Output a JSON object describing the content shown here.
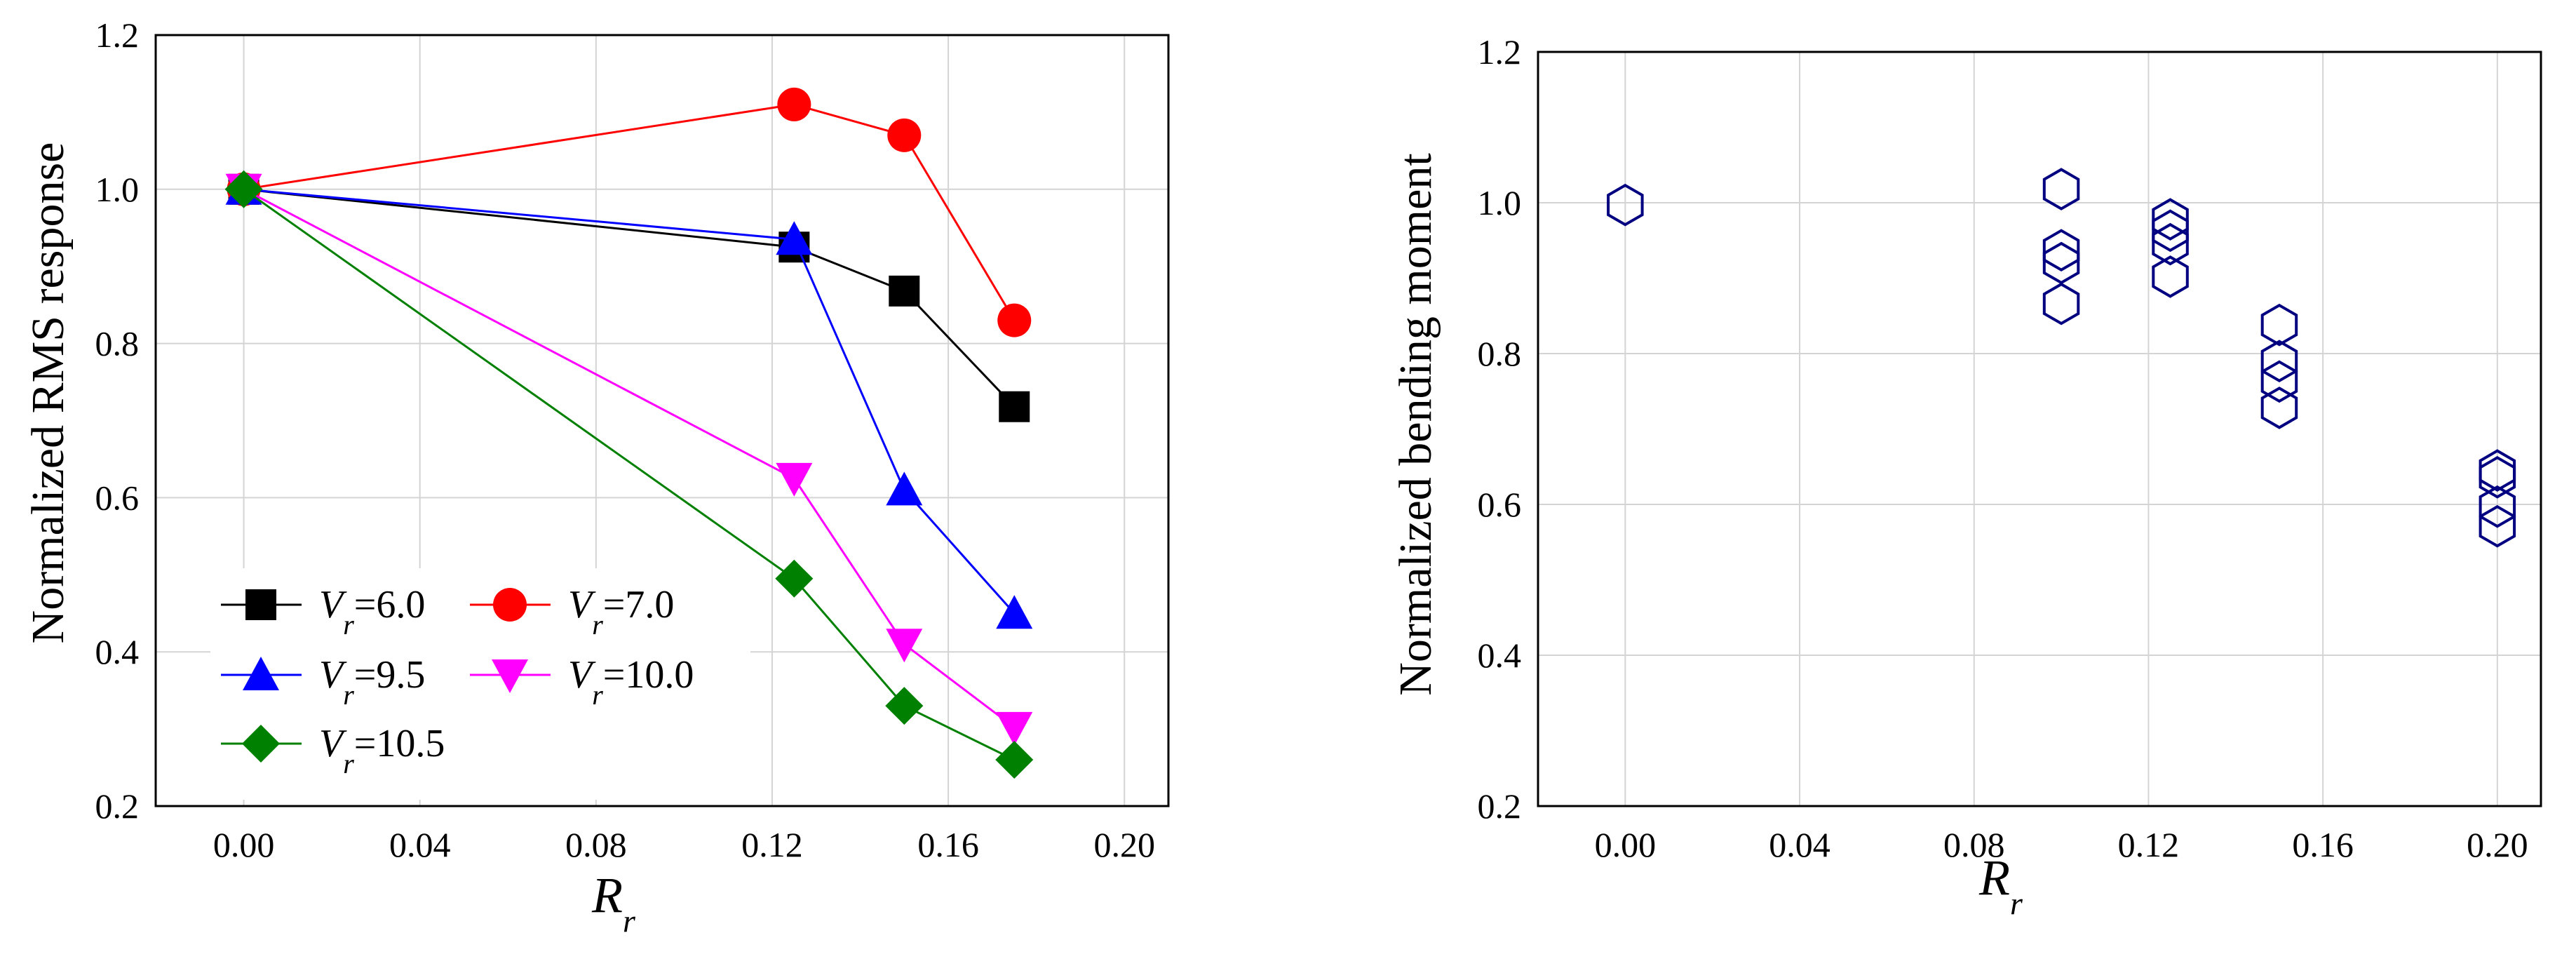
{
  "chart_data": [
    {
      "type": "line",
      "ylabel": "Normalized RMS response",
      "xlabel": "R",
      "xlabel_subscript": "r",
      "xlim": [
        -0.02,
        0.21
      ],
      "ylim": [
        0.2,
        1.2
      ],
      "xticks": [
        0.0,
        0.04,
        0.08,
        0.12,
        0.16,
        0.2
      ],
      "xtick_labels": [
        "0.00",
        "0.04",
        "0.08",
        "0.12",
        "0.16",
        "0.20"
      ],
      "yticks": [
        0.2,
        0.4,
        0.6,
        0.8,
        1.0,
        1.2
      ],
      "ytick_labels": [
        "0.2",
        "0.4",
        "0.6",
        "0.8",
        "1.0",
        "1.2"
      ],
      "grid": true,
      "legend_position": "bottom-left",
      "series": [
        {
          "name": "Vr=6.0",
          "legend_var": "V",
          "legend_sub": "r",
          "legend_value": "=6.0",
          "color": "#000000",
          "marker": "square",
          "x": [
            0.0,
            0.125,
            0.15,
            0.175
          ],
          "y": [
            1.0,
            0.925,
            0.868,
            0.718
          ]
        },
        {
          "name": "Vr=7.0",
          "legend_var": "V",
          "legend_sub": "r",
          "legend_value": "=7.0",
          "color": "#ff0000",
          "marker": "circle",
          "x": [
            0.0,
            0.125,
            0.15,
            0.175
          ],
          "y": [
            1.0,
            1.11,
            1.07,
            0.83
          ]
        },
        {
          "name": "Vr=9.5",
          "legend_var": "V",
          "legend_sub": "r",
          "legend_value": "=9.5",
          "color": "#0000ff",
          "marker": "triangle-up",
          "x": [
            0.0,
            0.125,
            0.15,
            0.175
          ],
          "y": [
            1.0,
            0.935,
            0.61,
            0.45
          ]
        },
        {
          "name": "Vr=10.0",
          "legend_var": "V",
          "legend_sub": "r",
          "legend_value": "=10.0",
          "color": "#ff00ff",
          "marker": "triangle-down",
          "x": [
            0.0,
            0.125,
            0.15,
            0.175
          ],
          "y": [
            1.0,
            0.625,
            0.41,
            0.302
          ]
        },
        {
          "name": "Vr=10.5",
          "legend_var": "V",
          "legend_sub": "r",
          "legend_value": "=10.5",
          "color": "#008000",
          "marker": "diamond",
          "x": [
            0.0,
            0.125,
            0.15,
            0.175
          ],
          "y": [
            1.0,
            0.495,
            0.33,
            0.26
          ]
        }
      ]
    },
    {
      "type": "scatter",
      "ylabel": "Normalized bending moment",
      "xlabel": "R",
      "xlabel_subscript": "r",
      "xlim": [
        -0.02,
        0.21
      ],
      "ylim": [
        0.2,
        1.2
      ],
      "xticks": [
        0.0,
        0.04,
        0.08,
        0.12,
        0.16,
        0.2
      ],
      "xtick_labels": [
        "0.00",
        "0.04",
        "0.08",
        "0.12",
        "0.16",
        "0.20"
      ],
      "yticks": [
        0.2,
        0.4,
        0.6,
        0.8,
        1.0,
        1.2
      ],
      "ytick_labels": [
        "0.2",
        "0.4",
        "0.6",
        "0.8",
        "1.0",
        "1.2"
      ],
      "grid": true,
      "series": [
        {
          "name": "bending moment",
          "color": "#000080",
          "marker": "hexagon",
          "points": [
            [
              0.0,
              0.997
            ],
            [
              0.1,
              1.018
            ],
            [
              0.1,
              0.937
            ],
            [
              0.1,
              0.92
            ],
            [
              0.1,
              0.866
            ],
            [
              0.125,
              0.978
            ],
            [
              0.125,
              0.963
            ],
            [
              0.125,
              0.945
            ],
            [
              0.125,
              0.902
            ],
            [
              0.15,
              0.838
            ],
            [
              0.15,
              0.79
            ],
            [
              0.15,
              0.763
            ],
            [
              0.15,
              0.728
            ],
            [
              0.2,
              0.645
            ],
            [
              0.2,
              0.636
            ],
            [
              0.2,
              0.597
            ],
            [
              0.2,
              0.571
            ]
          ]
        }
      ]
    }
  ]
}
